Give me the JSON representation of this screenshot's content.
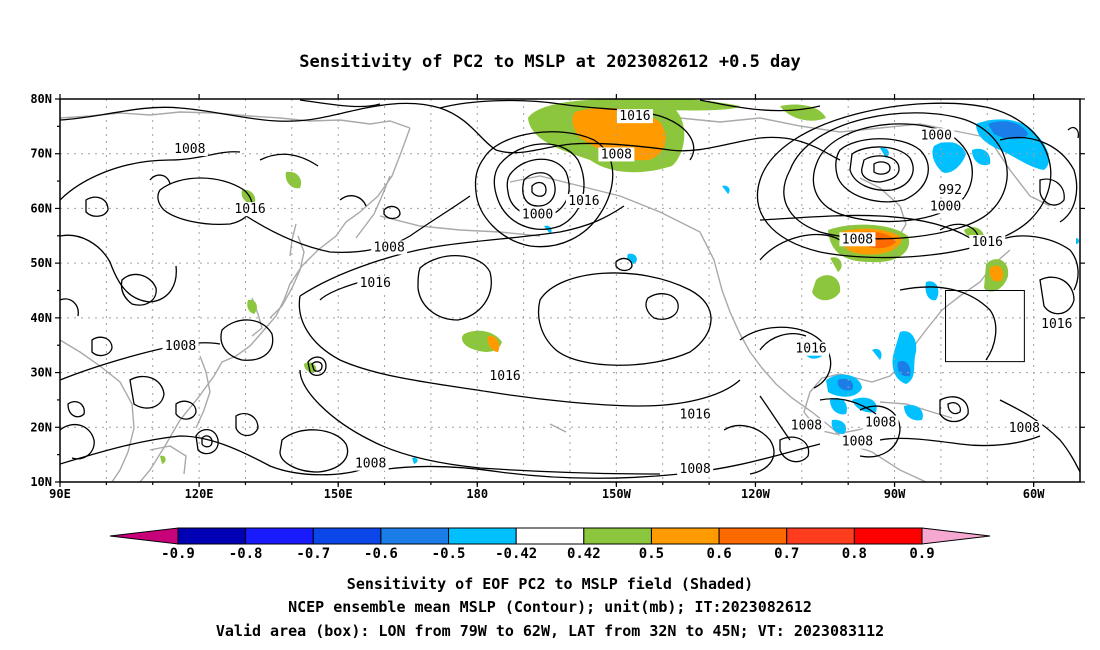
{
  "title": "Sensitivity of PC2 to MSLP at 2023082612 +0.5 day",
  "map": {
    "lon_range": [
      90,
      310
    ],
    "lat_range": [
      10,
      80
    ],
    "lat_ticks": [
      {
        "value": 80,
        "label": "80N"
      },
      {
        "value": 70,
        "label": "70N"
      },
      {
        "value": 60,
        "label": "60N"
      },
      {
        "value": 50,
        "label": "50N"
      },
      {
        "value": 40,
        "label": "40N"
      },
      {
        "value": 30,
        "label": "30N"
      },
      {
        "value": 20,
        "label": "20N"
      },
      {
        "value": 10,
        "label": "10N"
      }
    ],
    "lon_ticks": [
      {
        "value": 90,
        "label": "90E"
      },
      {
        "value": 120,
        "label": "120E"
      },
      {
        "value": 150,
        "label": "150E"
      },
      {
        "value": 180,
        "label": "180"
      },
      {
        "value": 210,
        "label": "150W"
      },
      {
        "value": 240,
        "label": "120W"
      },
      {
        "value": 270,
        "label": "90W"
      },
      {
        "value": 300,
        "label": "60W"
      }
    ],
    "valid_box": {
      "lon": [
        281,
        298
      ],
      "lat": [
        32,
        45
      ]
    },
    "contour_labels": [
      {
        "text": "1016",
        "lon": 214,
        "lat": 76.5
      },
      {
        "text": "1008",
        "lon": 210,
        "lat": 69.5
      },
      {
        "text": "1000",
        "lon": 279,
        "lat": 73
      },
      {
        "text": "992",
        "lon": 282,
        "lat": 63
      },
      {
        "text": "1000",
        "lon": 281,
        "lat": 60
      },
      {
        "text": "1008",
        "lon": 262,
        "lat": 54
      },
      {
        "text": "1016",
        "lon": 290,
        "lat": 53.5
      },
      {
        "text": "1008",
        "lon": 118,
        "lat": 70.5
      },
      {
        "text": "1016",
        "lon": 131,
        "lat": 59.5
      },
      {
        "text": "1000",
        "lon": 193,
        "lat": 58.5
      },
      {
        "text": "1016",
        "lon": 203,
        "lat": 61
      },
      {
        "text": "1008",
        "lon": 161,
        "lat": 52.5
      },
      {
        "text": "1016",
        "lon": 158,
        "lat": 46
      },
      {
        "text": "1008",
        "lon": 116,
        "lat": 34.5
      },
      {
        "text": "1016",
        "lon": 186,
        "lat": 29
      },
      {
        "text": "1016",
        "lon": 227,
        "lat": 22
      },
      {
        "text": "1016",
        "lon": 252,
        "lat": 34
      },
      {
        "text": "1016",
        "lon": 305,
        "lat": 38.5
      },
      {
        "text": "1008",
        "lon": 251,
        "lat": 20
      },
      {
        "text": "1008",
        "lon": 267,
        "lat": 20.5
      },
      {
        "text": "1008",
        "lon": 298,
        "lat": 19.5
      },
      {
        "text": "1008",
        "lon": 262,
        "lat": 17
      },
      {
        "text": "1008",
        "lon": 227,
        "lat": 12
      },
      {
        "text": "1008",
        "lon": 157,
        "lat": 13
      }
    ]
  },
  "colorbar": {
    "bins": [
      {
        "color": "#c8007a",
        "label": "-0.9"
      },
      {
        "color": "#0000b4",
        "label": "-0.8"
      },
      {
        "color": "#1a1aff",
        "label": "-0.7"
      },
      {
        "color": "#0b47e8",
        "label": "-0.6"
      },
      {
        "color": "#1b7de8",
        "label": "-0.5"
      },
      {
        "color": "#00c0ff",
        "label": "-0.42"
      },
      {
        "color": "#ffffff",
        "label": "0.42"
      },
      {
        "color": "#8cc63c",
        "label": "0.5"
      },
      {
        "color": "#ff9b00",
        "label": "0.6"
      },
      {
        "color": "#ff6a00",
        "label": "0.7"
      },
      {
        "color": "#ff3c1e",
        "label": "0.8"
      },
      {
        "color": "#ff0000",
        "label": "0.9"
      },
      {
        "color": "#f5a8d2",
        "label": ""
      }
    ]
  },
  "caption": {
    "line1": "Sensitivity of EOF PC2 to MSLP field (Shaded)",
    "line2": "NCEP ensemble mean MSLP (Contour); unit(mb); IT:2023082612",
    "line3": "Valid area (box): LON from 79W to 62W, LAT from 32N to 45N; VT: 2023083112"
  },
  "colors": {
    "contour": "#000000",
    "coast": "#a9a9a9",
    "grid": "#a0a0a0"
  }
}
